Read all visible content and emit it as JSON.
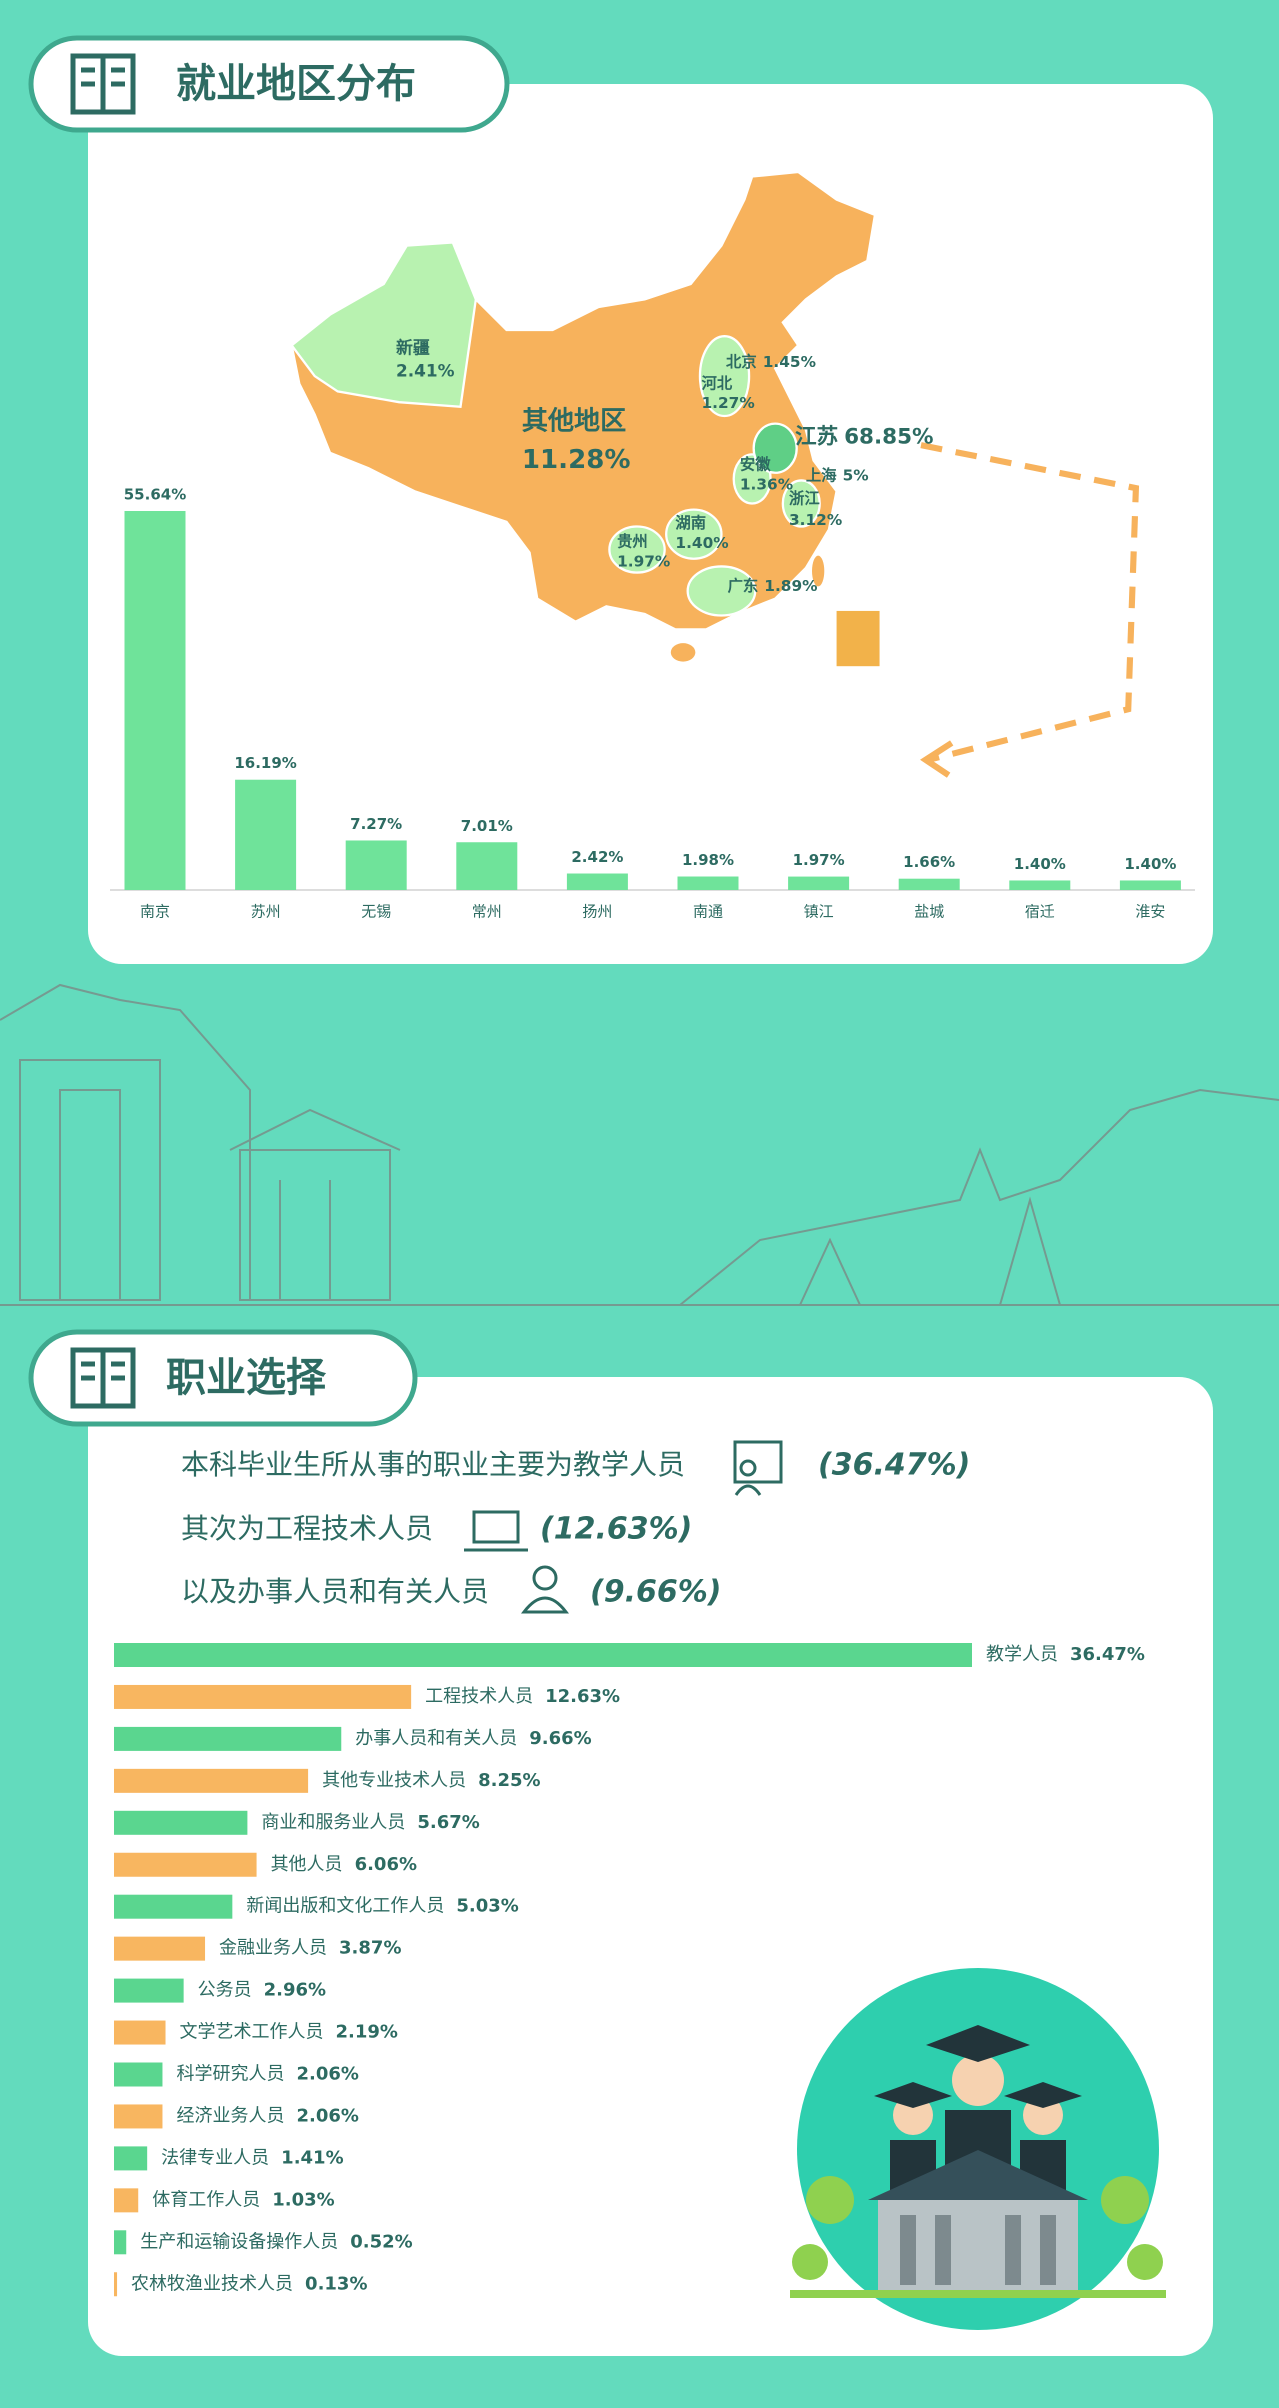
{
  "sections": [
    {
      "title": "就业地区分布"
    },
    {
      "title": "职业选择"
    }
  ],
  "map": {
    "regions": [
      {
        "name": "新疆",
        "share": "2.41%"
      },
      {
        "name": "其他地区",
        "share": "11.28%"
      },
      {
        "name": "北京",
        "share": "1.45%"
      },
      {
        "name": "河北",
        "share": "1.27%"
      },
      {
        "name": "江苏",
        "share": "68.85%"
      },
      {
        "name": "安徽",
        "share": "1.36%"
      },
      {
        "name": "上海",
        "share": "5%"
      },
      {
        "name": "浙江",
        "share": "3.12%"
      },
      {
        "name": "湖南",
        "share": "1.40%"
      },
      {
        "name": "贵州",
        "share": "1.97%"
      },
      {
        "name": "广东",
        "share": "1.89%"
      }
    ]
  },
  "intro": [
    {
      "text": "本科毕业生所从事的职业主要为教学人员",
      "value": "(36.47%)"
    },
    {
      "text": "其次为工程技术人员",
      "value": "(12.63%)"
    },
    {
      "text": "以及办事人员和有关人员",
      "value": "(9.66%)"
    }
  ],
  "chart_data": [
    {
      "type": "bar",
      "categories": [
        "南京",
        "苏州",
        "无锡",
        "常州",
        "扬州",
        "南通",
        "镇江",
        "盐城",
        "宿迁",
        "淮安"
      ],
      "values": [
        55.64,
        16.19,
        7.27,
        7.01,
        2.42,
        1.98,
        1.97,
        1.66,
        1.4,
        1.4
      ],
      "value_labels": [
        "55.64%",
        "16.19%",
        "7.27%",
        "7.01%",
        "2.42%",
        "1.98%",
        "1.97%",
        "1.66%",
        "1.40%",
        "1.40%"
      ],
      "color": "#6fe39a"
    },
    {
      "type": "hbar",
      "categories": [
        "教学人员",
        "工程技术人员",
        "办事人员和有关人员",
        "其他专业技术人员",
        "商业和服务业人员",
        "其他人员",
        "新闻出版和文化工作人员",
        "金融业务人员",
        "公务员",
        "文学艺术工作人员",
        "科学研究人员",
        "经济业务人员",
        "法律专业人员",
        "体育工作人员",
        "生产和运输设备操作人员",
        "农林牧渔业技术人员"
      ],
      "values": [
        36.47,
        12.63,
        9.66,
        8.25,
        5.67,
        6.06,
        5.03,
        3.87,
        2.96,
        2.19,
        2.06,
        2.06,
        1.41,
        1.03,
        0.52,
        0.13
      ],
      "value_labels": [
        "36.47%",
        "12.63%",
        "9.66%",
        "8.25%",
        "5.67%",
        "6.06%",
        "5.03%",
        "3.87%",
        "2.96%",
        "2.19%",
        "2.06%",
        "2.06%",
        "1.41%",
        "1.03%",
        "0.52%",
        "0.13%"
      ],
      "colors": [
        "#5ad68f",
        "#f8b660"
      ]
    }
  ]
}
